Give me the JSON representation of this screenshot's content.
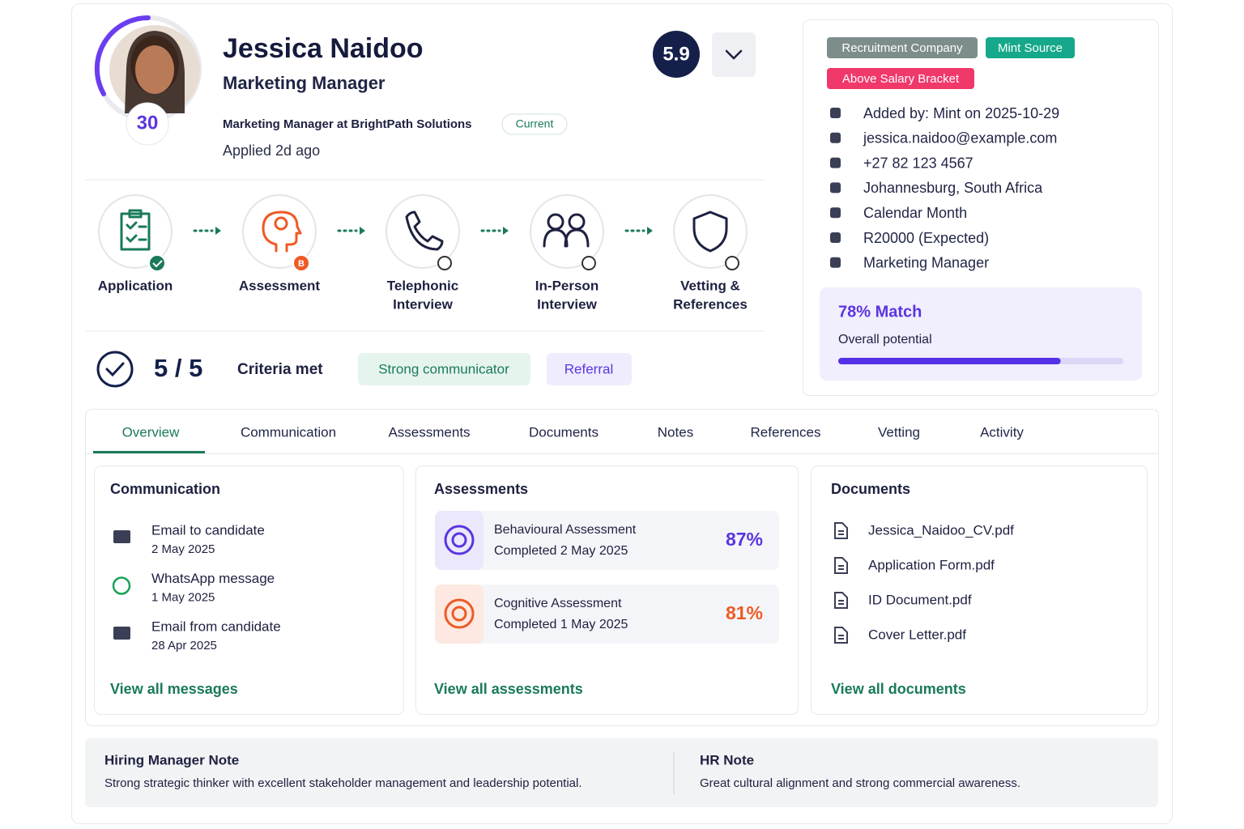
{
  "candidate": {
    "name": "Jessica Naidoo",
    "title": "Marketing Manager",
    "score_badge": "30",
    "rating": "5.9",
    "current_role": "Marketing Manager at BrightPath Solutions",
    "status": "Current",
    "applied": "Applied 2d ago"
  },
  "pipeline": [
    {
      "lines": [
        "Application"
      ]
    },
    {
      "lines": [
        "Assessment"
      ],
      "badge": "B"
    },
    {
      "lines": [
        "Telephonic",
        "Interview"
      ]
    },
    {
      "lines": [
        "In-Person",
        "Interview"
      ]
    },
    {
      "lines": [
        "Vetting &",
        "References"
      ]
    }
  ],
  "criteria": {
    "count": "5 / 5",
    "label": "Criteria met",
    "tags": [
      "Strong communicator",
      "Referral"
    ]
  },
  "tags": [
    "Recruitment Company",
    "Mint Source",
    "Above Salary Bracket"
  ],
  "details": [
    "Added by: Mint on 2025-10-29",
    "jessica.naidoo@example.com",
    "+27 82 123 4567",
    "Johannesburg, South Africa",
    "Calendar Month",
    "R20000 (Expected)",
    "Marketing Manager"
  ],
  "match": {
    "value": 78,
    "label": "78% Match",
    "caption": "Overall potential"
  },
  "tabs": [
    "Overview",
    "Communication",
    "Assessments",
    "Documents",
    "Notes",
    "References",
    "Vetting",
    "Activity"
  ],
  "communication": {
    "title": "Communication",
    "items": [
      {
        "title": "Email to candidate",
        "date": "2 May 2025"
      },
      {
        "title": "WhatsApp message",
        "date": "1 May 2025"
      },
      {
        "title": "Email from candidate",
        "date": "28 Apr 2025"
      }
    ],
    "link": "View all messages"
  },
  "assessments": {
    "title": "Assessments",
    "items": [
      {
        "name": "Behavioural Assessment",
        "date": "Completed 2 May 2025",
        "score": "87%"
      },
      {
        "name": "Cognitive Assessment",
        "date": "Completed 1 May 2025",
        "score": "81%"
      }
    ],
    "link": "View all assessments"
  },
  "documents": {
    "title": "Documents",
    "items": [
      "Jessica_Naidoo_CV.pdf",
      "Application Form.pdf",
      "ID Document.pdf",
      "Cover Letter.pdf"
    ],
    "link": "View all documents"
  },
  "notes": [
    {
      "title": "Hiring Manager Note",
      "text": "Strong strategic thinker with excellent stakeholder management and leadership potential."
    },
    {
      "title": "HR Note",
      "text": "Great cultural alignment and strong commercial awareness."
    }
  ]
}
